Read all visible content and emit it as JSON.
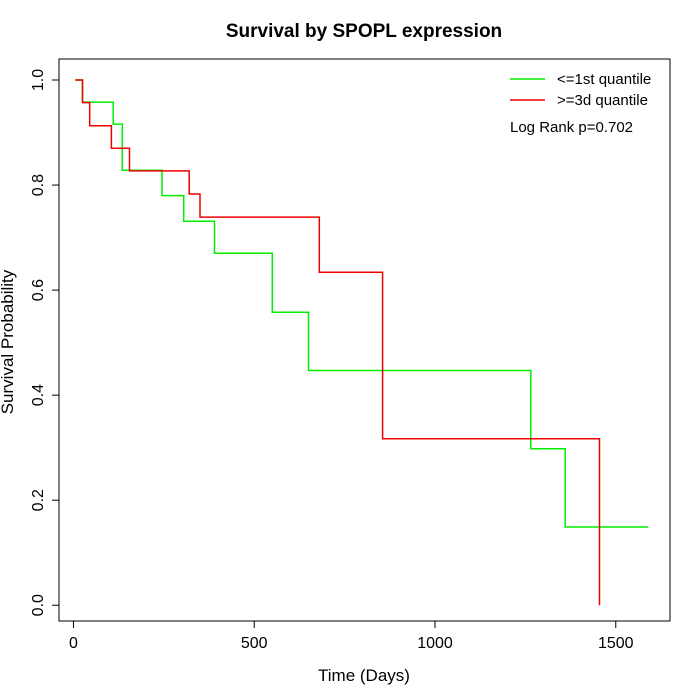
{
  "chart_data": {
    "type": "line",
    "title": "Survival by SPOPL expression",
    "xlabel": "Time (Days)",
    "ylabel": "Survival Probability",
    "xlim": [
      -40,
      1650
    ],
    "ylim": [
      -0.03,
      1.04
    ],
    "x_ticks": [
      0,
      500,
      1000,
      1500
    ],
    "x_tick_labels": [
      "0",
      "500",
      "1000",
      "1500"
    ],
    "y_ticks": [
      0.0,
      0.2,
      0.4,
      0.6,
      0.8,
      1.0
    ],
    "y_tick_labels": [
      "0.0",
      "0.2",
      "0.4",
      "0.6",
      "0.8",
      "1.0"
    ],
    "legend_position": "top-right",
    "annotation": "Log Rank p=0.702",
    "series": [
      {
        "name": "<=1st quantile",
        "color": "#00ee00",
        "step_points": [
          [
            5,
            1.0
          ],
          [
            25,
            1.0
          ],
          [
            25,
            0.958
          ],
          [
            110,
            0.958
          ],
          [
            110,
            0.916
          ],
          [
            135,
            0.916
          ],
          [
            135,
            0.828
          ],
          [
            245,
            0.828
          ],
          [
            245,
            0.78
          ],
          [
            305,
            0.78
          ],
          [
            305,
            0.731
          ],
          [
            390,
            0.731
          ],
          [
            390,
            0.67
          ],
          [
            550,
            0.67
          ],
          [
            550,
            0.558
          ],
          [
            650,
            0.558
          ],
          [
            650,
            0.447
          ],
          [
            1265,
            0.447
          ],
          [
            1265,
            0.298
          ],
          [
            1360,
            0.298
          ],
          [
            1360,
            0.149
          ],
          [
            1590,
            0.149
          ]
        ]
      },
      {
        "name": ">=3d quantile",
        "color": "#ee0000",
        "step_points": [
          [
            5,
            1.0
          ],
          [
            25,
            1.0
          ],
          [
            25,
            0.957
          ],
          [
            45,
            0.957
          ],
          [
            45,
            0.913
          ],
          [
            105,
            0.913
          ],
          [
            105,
            0.87
          ],
          [
            155,
            0.87
          ],
          [
            155,
            0.827
          ],
          [
            320,
            0.827
          ],
          [
            320,
            0.783
          ],
          [
            350,
            0.783
          ],
          [
            350,
            0.739
          ],
          [
            680,
            0.739
          ],
          [
            680,
            0.634
          ],
          [
            855,
            0.634
          ],
          [
            855,
            0.317
          ],
          [
            1455,
            0.317
          ],
          [
            1455,
            0.0
          ]
        ]
      }
    ]
  }
}
